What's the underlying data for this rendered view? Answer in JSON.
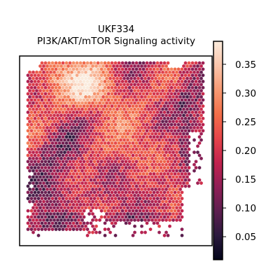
{
  "chart_data": {
    "type": "scatter",
    "title": [
      "UKF334",
      "PI3K/AKT/mTOR Signaling activity"
    ],
    "xlabel": "",
    "ylabel": "",
    "colormap": "rocket",
    "colorbar": {
      "range": [
        0.01,
        0.39
      ],
      "ticks": [
        0.05,
        0.1,
        0.15,
        0.2,
        0.25,
        0.3,
        0.35
      ],
      "tick_labels": [
        "0.05",
        "0.10",
        "0.15",
        "0.20",
        "0.25",
        "0.30",
        "0.35"
      ]
    },
    "grid": false,
    "point_shape": "hexagon",
    "colormap_stops": [
      "#03051a",
      "#2b1a3e",
      "#5d1f4f",
      "#8f1f56",
      "#c1234e",
      "#e5454a",
      "#f26f49",
      "#f69a73",
      "#f9c5ab",
      "#faebdd"
    ]
  }
}
